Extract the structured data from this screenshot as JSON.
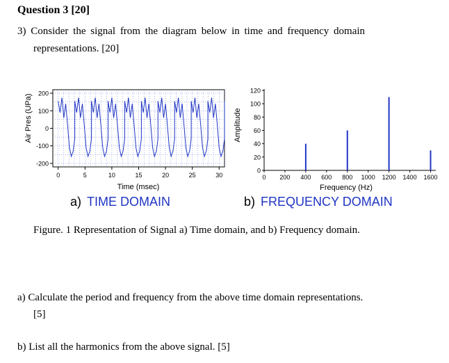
{
  "question": {
    "title": "Question 3 [20]",
    "line1": "3)  Consider the signal from the diagram below in time and frequency domain",
    "line2": "representations. [20]"
  },
  "chart_data": [
    {
      "type": "line",
      "xlabel": "Time (msec)",
      "ylabel": "Air Pres (UPa)",
      "xlim": [
        -1,
        31
      ],
      "ylim": [
        -220,
        220
      ],
      "xticks": [
        0,
        5,
        10,
        15,
        20,
        25,
        30
      ],
      "yticks": [
        200,
        100,
        0,
        -100,
        -200
      ],
      "grid": true,
      "series": [
        {
          "period_ms": 3.1,
          "x": [
            0,
            0.35,
            0.7,
            1.05,
            1.4,
            1.75,
            2.1,
            2.45,
            2.8,
            3.1
          ],
          "y": [
            155,
            90,
            175,
            60,
            140,
            20,
            -110,
            -160,
            -130,
            -60
          ]
        }
      ]
    },
    {
      "type": "bar",
      "xlabel": "Frequency (Hz)",
      "ylabel": "Amplitude",
      "xlim": [
        0,
        1650
      ],
      "ylim": [
        0,
        120
      ],
      "xticks": [
        0,
        200,
        400,
        600,
        800,
        1000,
        1200,
        1400,
        1600
      ],
      "yticks": [
        0,
        20,
        40,
        60,
        80,
        100,
        120
      ],
      "x": [
        400,
        800,
        1200,
        1600
      ],
      "values": [
        40,
        60,
        110,
        30
      ]
    }
  ],
  "labels": {
    "a_letter": "a)",
    "a_text": "TIME DOMAIN",
    "b_letter": "b)",
    "b_text": "FREQUENCY DOMAIN",
    "caption": "Figure. 1 Representation of Signal a) Time domain, and b) Frequency domain."
  },
  "parts": {
    "a": "a)  Calculate the period and frequency from the above time domain representations.",
    "a_marks": "[5]",
    "b": "b)  List all the harmonics from the above signal. [5]"
  }
}
